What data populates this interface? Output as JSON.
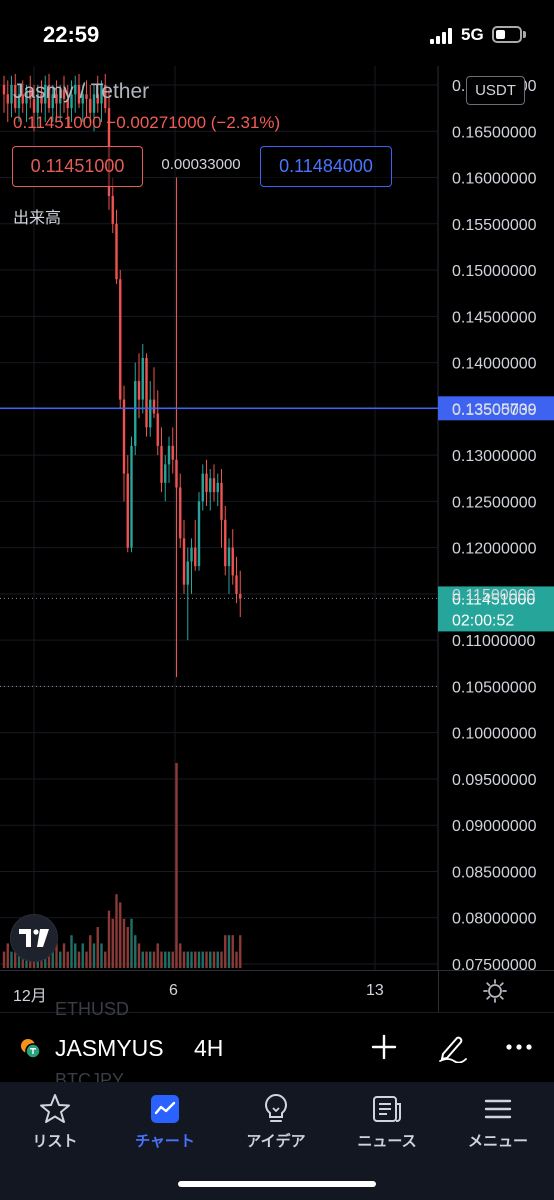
{
  "status_bar": {
    "time": "22:59",
    "network": "5G"
  },
  "chart": {
    "symbol_title": "Jasmy / Tether",
    "ohlc_text": "0.11451000 −0.00271000 (−2.31%)",
    "sell_price": "0.11451000",
    "spread": "0.00033000",
    "buy_price": "0.11484000",
    "volume_label": "出来高",
    "currency": "USDT",
    "price_axis": [
      "0.17000000",
      "0.16500000",
      "0.16000000",
      "0.15500000",
      "0.15000000",
      "0.14500000",
      "0.14000000",
      "0.13500000",
      "0.13000000",
      "0.12500000",
      "0.12000000",
      "0.11500000",
      "0.11000000",
      "0.10500000",
      "0.10000000",
      "0.09500000",
      "0.09000000",
      "0.08500000",
      "0.08000000",
      "0.07500000"
    ],
    "horizontal_line_price": "0.13505739",
    "current_price": "0.11451000",
    "countdown": "02:00:52",
    "dotted_line_price": 0.105,
    "colors": {
      "up": "#26a69a",
      "down": "#ef5350",
      "hline": "#3d63f0",
      "current_bg": "#26a69a"
    }
  },
  "chart_data": {
    "type": "candlestick",
    "title": "Jasmy / Tether",
    "ylim": [
      0.0745,
      0.1715
    ],
    "x_ticks": [
      "12月",
      "6",
      "13"
    ],
    "candles": [
      {
        "o": 0.17,
        "h": 0.171,
        "l": 0.167,
        "c": 0.169,
        "v": 2
      },
      {
        "o": 0.169,
        "h": 0.1705,
        "l": 0.166,
        "c": 0.168,
        "v": 3
      },
      {
        "o": 0.168,
        "h": 0.171,
        "l": 0.1665,
        "c": 0.17,
        "v": 2
      },
      {
        "o": 0.17,
        "h": 0.1712,
        "l": 0.167,
        "c": 0.1675,
        "v": 2
      },
      {
        "o": 0.1675,
        "h": 0.17,
        "l": 0.166,
        "c": 0.169,
        "v": 3
      },
      {
        "o": 0.169,
        "h": 0.1705,
        "l": 0.167,
        "c": 0.168,
        "v": 2
      },
      {
        "o": 0.168,
        "h": 0.17,
        "l": 0.166,
        "c": 0.1695,
        "v": 3
      },
      {
        "o": 0.1695,
        "h": 0.171,
        "l": 0.1675,
        "c": 0.1685,
        "v": 2
      },
      {
        "o": 0.1685,
        "h": 0.17,
        "l": 0.165,
        "c": 0.167,
        "v": 3
      },
      {
        "o": 0.167,
        "h": 0.17,
        "l": 0.1655,
        "c": 0.169,
        "v": 2
      },
      {
        "o": 0.169,
        "h": 0.1705,
        "l": 0.167,
        "c": 0.168,
        "v": 3
      },
      {
        "o": 0.168,
        "h": 0.171,
        "l": 0.166,
        "c": 0.17,
        "v": 4
      },
      {
        "o": 0.17,
        "h": 0.1712,
        "l": 0.167,
        "c": 0.1675,
        "v": 3
      },
      {
        "o": 0.1675,
        "h": 0.17,
        "l": 0.166,
        "c": 0.169,
        "v": 2
      },
      {
        "o": 0.169,
        "h": 0.1705,
        "l": 0.1665,
        "c": 0.168,
        "v": 3
      },
      {
        "o": 0.168,
        "h": 0.17,
        "l": 0.166,
        "c": 0.1695,
        "v": 2
      },
      {
        "o": 0.1695,
        "h": 0.171,
        "l": 0.167,
        "c": 0.1685,
        "v": 3
      },
      {
        "o": 0.1685,
        "h": 0.17,
        "l": 0.1655,
        "c": 0.1675,
        "v": 2
      },
      {
        "o": 0.1675,
        "h": 0.1705,
        "l": 0.166,
        "c": 0.169,
        "v": 4
      },
      {
        "o": 0.169,
        "h": 0.171,
        "l": 0.167,
        "c": 0.17,
        "v": 3
      },
      {
        "o": 0.17,
        "h": 0.1712,
        "l": 0.1675,
        "c": 0.168,
        "v": 2
      },
      {
        "o": 0.168,
        "h": 0.17,
        "l": 0.166,
        "c": 0.169,
        "v": 3
      },
      {
        "o": 0.169,
        "h": 0.1705,
        "l": 0.1665,
        "c": 0.1685,
        "v": 2
      },
      {
        "o": 0.1685,
        "h": 0.17,
        "l": 0.166,
        "c": 0.167,
        "v": 4
      },
      {
        "o": 0.167,
        "h": 0.17,
        "l": 0.165,
        "c": 0.169,
        "v": 3
      },
      {
        "o": 0.169,
        "h": 0.171,
        "l": 0.167,
        "c": 0.168,
        "v": 5
      },
      {
        "o": 0.168,
        "h": 0.1705,
        "l": 0.166,
        "c": 0.17,
        "v": 3
      },
      {
        "o": 0.17,
        "h": 0.1712,
        "l": 0.167,
        "c": 0.1675,
        "v": 2
      },
      {
        "o": 0.1675,
        "h": 0.1695,
        "l": 0.1565,
        "c": 0.158,
        "v": 7
      },
      {
        "o": 0.158,
        "h": 0.16,
        "l": 0.154,
        "c": 0.155,
        "v": 6
      },
      {
        "o": 0.155,
        "h": 0.1565,
        "l": 0.1485,
        "c": 0.149,
        "v": 9
      },
      {
        "o": 0.149,
        "h": 0.15,
        "l": 0.135,
        "c": 0.136,
        "v": 8
      },
      {
        "o": 0.136,
        "h": 0.1375,
        "l": 0.125,
        "c": 0.128,
        "v": 6
      },
      {
        "o": 0.128,
        "h": 0.13,
        "l": 0.1195,
        "c": 0.12,
        "v": 5
      },
      {
        "o": 0.12,
        "h": 0.132,
        "l": 0.1195,
        "c": 0.131,
        "v": 6
      },
      {
        "o": 0.131,
        "h": 0.14,
        "l": 0.13,
        "c": 0.138,
        "v": 4
      },
      {
        "o": 0.138,
        "h": 0.141,
        "l": 0.134,
        "c": 0.136,
        "v": 3
      },
      {
        "o": 0.136,
        "h": 0.142,
        "l": 0.1345,
        "c": 0.1405,
        "v": 2
      },
      {
        "o": 0.1405,
        "h": 0.141,
        "l": 0.132,
        "c": 0.133,
        "v": 2
      },
      {
        "o": 0.133,
        "h": 0.138,
        "l": 0.132,
        "c": 0.136,
        "v": 2
      },
      {
        "o": 0.136,
        "h": 0.1395,
        "l": 0.134,
        "c": 0.1345,
        "v": 2
      },
      {
        "o": 0.1345,
        "h": 0.137,
        "l": 0.13,
        "c": 0.131,
        "v": 3
      },
      {
        "o": 0.131,
        "h": 0.133,
        "l": 0.126,
        "c": 0.127,
        "v": 2
      },
      {
        "o": 0.127,
        "h": 0.13,
        "l": 0.125,
        "c": 0.129,
        "v": 2
      },
      {
        "o": 0.129,
        "h": 0.132,
        "l": 0.127,
        "c": 0.131,
        "v": 2
      },
      {
        "o": 0.131,
        "h": 0.133,
        "l": 0.128,
        "c": 0.1295,
        "v": 2
      },
      {
        "o": 0.1295,
        "h": 0.16,
        "l": 0.106,
        "c": 0.1265,
        "v": 25
      },
      {
        "o": 0.1265,
        "h": 0.128,
        "l": 0.12,
        "c": 0.121,
        "v": 3
      },
      {
        "o": 0.121,
        "h": 0.123,
        "l": 0.115,
        "c": 0.116,
        "v": 2
      },
      {
        "o": 0.116,
        "h": 0.12,
        "l": 0.11,
        "c": 0.1185,
        "v": 2
      },
      {
        "o": 0.1185,
        "h": 0.121,
        "l": 0.115,
        "c": 0.12,
        "v": 2
      },
      {
        "o": 0.12,
        "h": 0.123,
        "l": 0.1175,
        "c": 0.118,
        "v": 2
      },
      {
        "o": 0.118,
        "h": 0.126,
        "l": 0.1175,
        "c": 0.125,
        "v": 2
      },
      {
        "o": 0.125,
        "h": 0.129,
        "l": 0.124,
        "c": 0.128,
        "v": 2
      },
      {
        "o": 0.128,
        "h": 0.1295,
        "l": 0.1245,
        "c": 0.126,
        "v": 2
      },
      {
        "o": 0.126,
        "h": 0.1285,
        "l": 0.124,
        "c": 0.1275,
        "v": 2
      },
      {
        "o": 0.1275,
        "h": 0.129,
        "l": 0.125,
        "c": 0.126,
        "v": 2
      },
      {
        "o": 0.126,
        "h": 0.128,
        "l": 0.1245,
        "c": 0.127,
        "v": 2
      },
      {
        "o": 0.127,
        "h": 0.1285,
        "l": 0.12,
        "c": 0.123,
        "v": 2
      },
      {
        "o": 0.123,
        "h": 0.1245,
        "l": 0.117,
        "c": 0.118,
        "v": 4
      },
      {
        "o": 0.118,
        "h": 0.121,
        "l": 0.115,
        "c": 0.12,
        "v": 4
      },
      {
        "o": 0.12,
        "h": 0.122,
        "l": 0.116,
        "c": 0.117,
        "v": 4
      },
      {
        "o": 0.117,
        "h": 0.119,
        "l": 0.114,
        "c": 0.115,
        "v": 2
      },
      {
        "o": 0.115,
        "h": 0.1175,
        "l": 0.1125,
        "c": 0.1145,
        "v": 4
      }
    ]
  },
  "time_axis": {
    "labels": [
      "12月",
      "6",
      "13"
    ]
  },
  "toolbar": {
    "ghost_above": "ETHUSD",
    "ghost_below": "BTCJPY",
    "symbol": "JASMYUS",
    "interval": "4H"
  },
  "tabbar": {
    "tabs": [
      {
        "label": "リスト",
        "icon": "star-icon"
      },
      {
        "label": "チャート",
        "icon": "chart-icon"
      },
      {
        "label": "アイデア",
        "icon": "lightbulb-icon"
      },
      {
        "label": "ニュース",
        "icon": "news-icon"
      },
      {
        "label": "メニュー",
        "icon": "menu-icon"
      }
    ]
  }
}
